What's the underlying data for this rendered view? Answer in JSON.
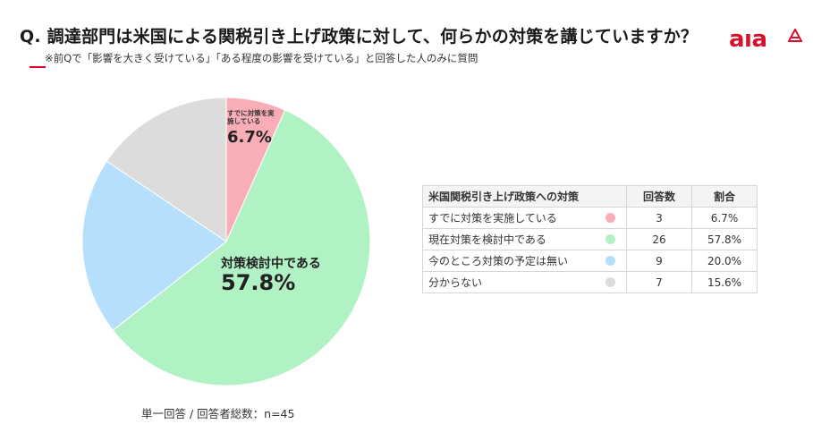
{
  "header": {
    "title": "Q. 調達部門は米国による関税引き上げ政策に対して、何らかの対策を講じていますか？",
    "subtitle": "※前Qで「影響を大きく受けている」「ある程度の影響を受けている」と回答した人のみに質問"
  },
  "logo": {
    "text": "aıa",
    "icon": "aia-triangle-icon",
    "color": "#d8102e"
  },
  "slice_labels": {
    "small_name": "すでに対策を実施している",
    "small_value": "6.7%",
    "large_name": "対策検討中である",
    "large_value": "57.8%"
  },
  "footnote": "単一回答 / 回答者総数：n=45",
  "table": {
    "headers": [
      "米国関税引き上げ政策への対策",
      "回答数",
      "割合"
    ],
    "rows": [
      {
        "name": "すでに対策を実施している",
        "count": "3",
        "pct": "6.7%"
      },
      {
        "name": "現在対策を検討中である",
        "count": "26",
        "pct": "57.8%"
      },
      {
        "name": "今のところ対策の予定は無い",
        "count": "9",
        "pct": "20.0%"
      },
      {
        "name": "分からない",
        "count": "7",
        "pct": "15.6%"
      }
    ]
  },
  "chart_data": {
    "type": "pie",
    "title": "Q. 調達部門は米国による関税引き上げ政策に対して、何らかの対策を講じていますか？",
    "categories": [
      "すでに対策を実施している",
      "現在対策を検討中である",
      "今のところ対策の予定は無い",
      "分からない"
    ],
    "values": [
      6.7,
      57.8,
      20.0,
      15.6
    ],
    "counts": [
      3,
      26,
      9,
      7
    ],
    "colors": [
      "#f9aeb7",
      "#b1f2c4",
      "#b5dffc",
      "#dcdcdc"
    ],
    "start": "12 o'clock, clockwise"
  }
}
